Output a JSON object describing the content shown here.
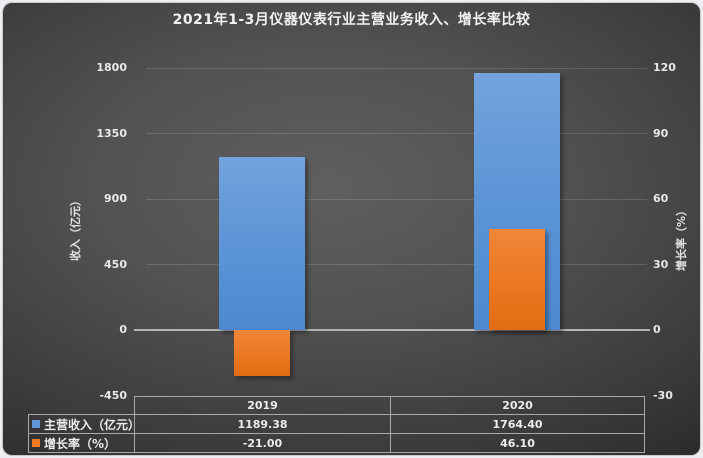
{
  "title": "2021年1-3月仪器仪表行业主营业务收入、增长率比较",
  "chart_data": {
    "type": "bar",
    "subtype": "dual-axis-overlapped-columns",
    "categories": [
      "2019",
      "2020"
    ],
    "series": [
      {
        "name": "主营收入（亿元）",
        "axis": "left",
        "color": "#5e96d7",
        "values": [
          1189.38,
          1764.4
        ],
        "display_values": [
          "1189.38",
          "1764.40"
        ]
      },
      {
        "name": "增长率（%）",
        "axis": "right",
        "color": "#ec7a25",
        "values": [
          -21.0,
          46.1
        ],
        "display_values": [
          "-21.00",
          "46.10"
        ]
      }
    ],
    "left_axis": {
      "title": "收入（亿元）",
      "min": -450,
      "max": 1800,
      "ticks": [
        1800,
        1350,
        900,
        450,
        0,
        -450
      ],
      "tick_labels": [
        "1800",
        "1350",
        "900",
        "450",
        "0",
        "-450"
      ]
    },
    "right_axis": {
      "title": "增长率（%）",
      "min": -30,
      "max": 120,
      "ticks": [
        120,
        90,
        60,
        30,
        0,
        -30
      ],
      "tick_labels": [
        "120",
        "90",
        "60",
        "30",
        "0",
        "-30"
      ]
    },
    "grid": true,
    "legend_position": "data-table-left",
    "background": {
      "panel": "dark-gray-radial-gradient",
      "outer": "#eceef1"
    },
    "colors": {
      "revenue_bar": "#5e96d7",
      "growth_bar": "#ec7a25",
      "zero_line": "#b4b4b4",
      "gridline": "#6b6b6b",
      "table_border": "#a9a9a9",
      "text": "#ececec"
    }
  }
}
